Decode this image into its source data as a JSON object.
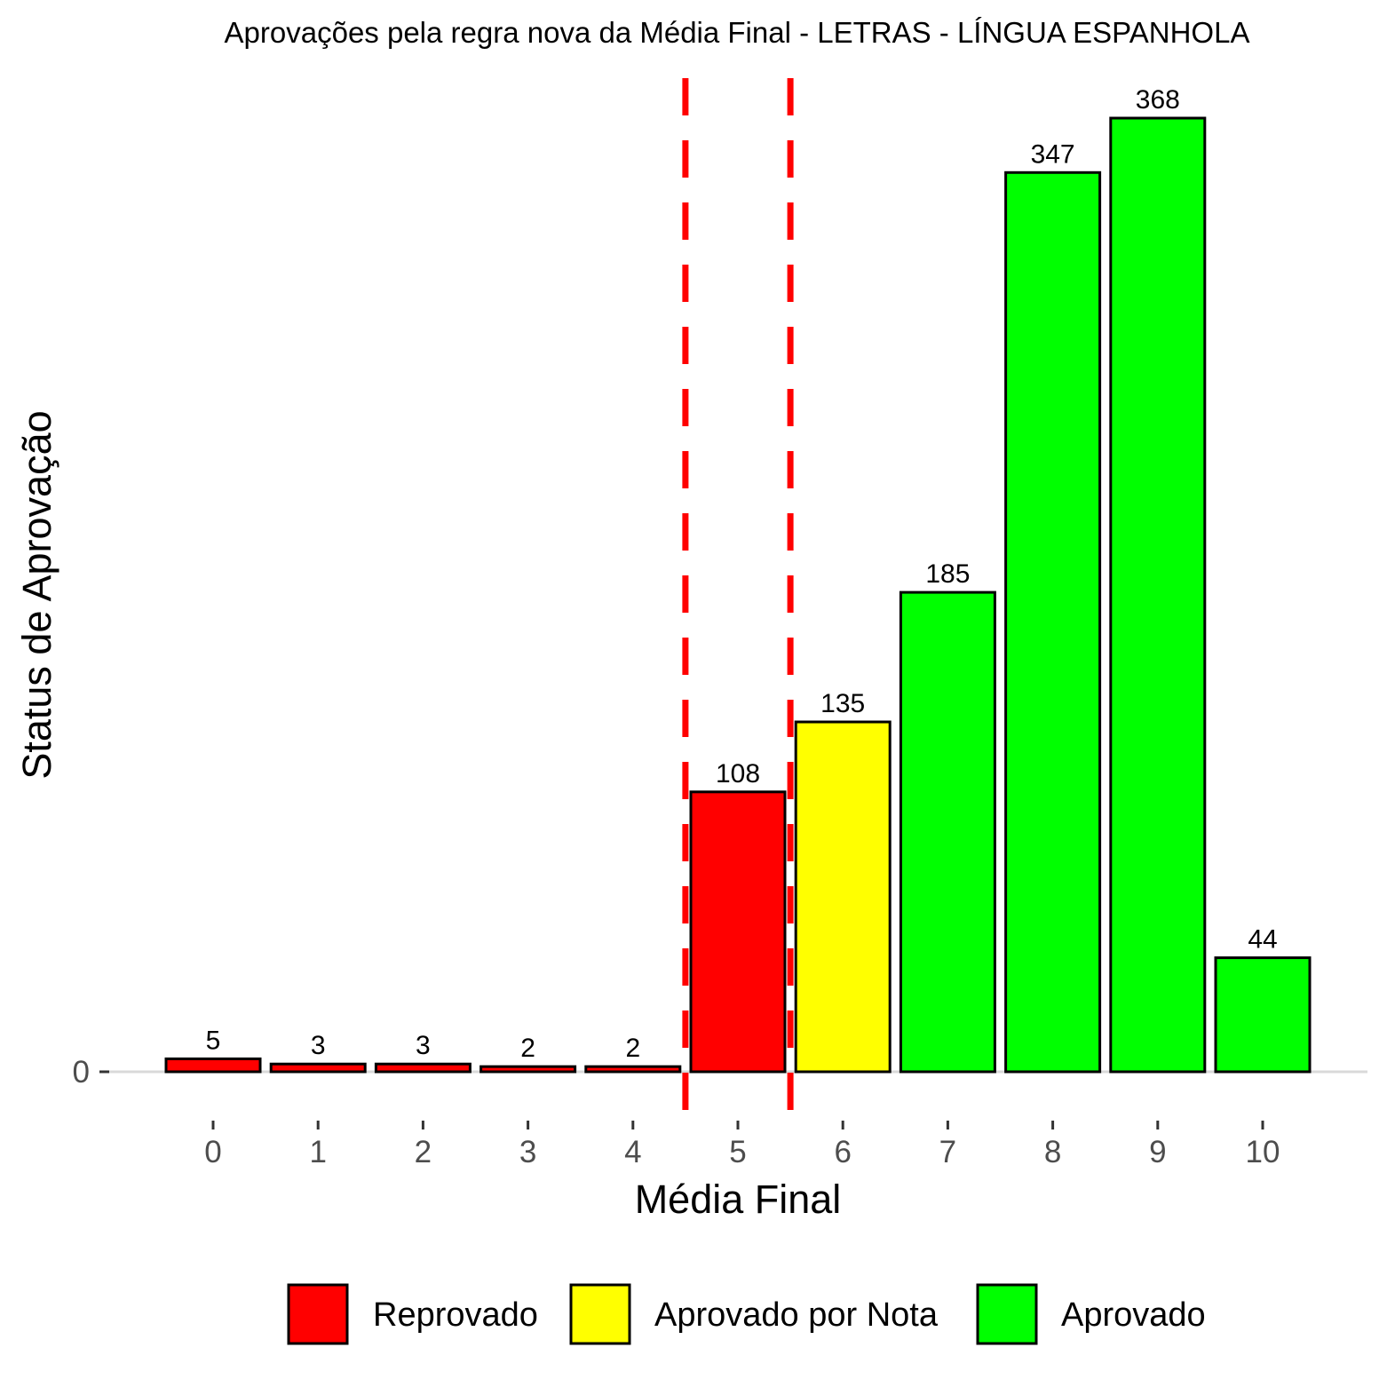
{
  "chart_data": {
    "type": "bar",
    "title": "Aprovações pela regra nova da Média Final - LETRAS - LÍNGUA ESPANHOLA",
    "xlabel": "Média Final",
    "ylabel": "Status de Aprovação",
    "categories": [
      "0",
      "1",
      "2",
      "3",
      "4",
      "5",
      "6",
      "7",
      "8",
      "9",
      "10"
    ],
    "values": [
      5,
      3,
      3,
      2,
      2,
      108,
      135,
      185,
      347,
      368,
      44
    ],
    "bar_status": [
      "Reprovado",
      "Reprovado",
      "Reprovado",
      "Reprovado",
      "Reprovado",
      "Reprovado",
      "Aprovado por Nota",
      "Aprovado",
      "Aprovado",
      "Aprovado",
      "Aprovado"
    ],
    "y_ticks": [
      "0"
    ],
    "ylim": [
      0,
      368
    ],
    "reference_lines_x": [
      4.5,
      5.5
    ],
    "reference_line_color": "#ff0000",
    "grid": false,
    "legend_position": "bottom",
    "legend": [
      {
        "label": "Reprovado",
        "color": "#ff0000"
      },
      {
        "label": "Aprovado por Nota",
        "color": "#ffff00"
      },
      {
        "label": "Aprovado",
        "color": "#00ff00"
      }
    ]
  }
}
